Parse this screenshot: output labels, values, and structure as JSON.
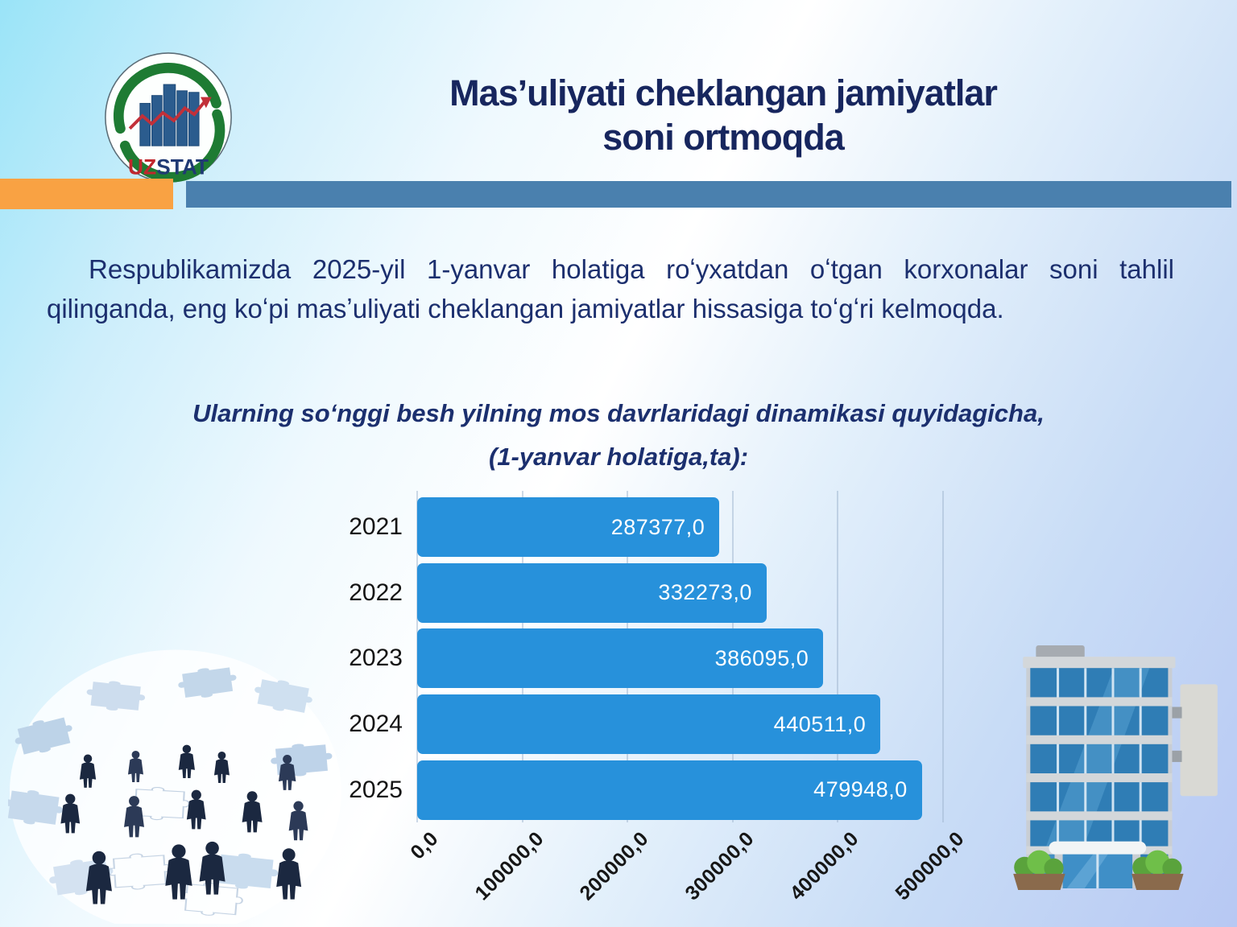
{
  "slide": {
    "title_line1": "Mas’uliyati cheklangan jamiyatlar",
    "title_line2": "soni ortmoqda",
    "paragraph": "Respublikamizda 2025-yil 1-yanvar holatiga roʻyxatdan oʻtgan korxonalar soni tahlil qilinganda, eng koʻpi masʼuliyati cheklangan jamiyatlar hissasiga toʻgʻri kelmoqda.",
    "subtitle_line1": "Ularning soʻnggi besh yilning mos davrlaridagi dinamikasi quyidagicha,",
    "subtitle_line2": "(1-yanvar holatiga,ta):"
  },
  "logo": {
    "text_uz": "UZ",
    "text_stat": "STAT"
  },
  "colors": {
    "title_navy": "#17265E",
    "text_navy": "#1C2F6E",
    "bar_blue": "#2791DB",
    "divider_orange": "#F9A243",
    "divider_steel_blue": "#4A80AE",
    "logo_green": "#1E7B33",
    "logo_red": "#C0272D",
    "value_label_white": "#FFFFFF"
  },
  "chart_data": {
    "type": "bar",
    "orientation": "horizontal",
    "title": "",
    "xlabel": "",
    "ylabel": "",
    "categories": [
      "2021",
      "2022",
      "2023",
      "2024",
      "2025"
    ],
    "values": [
      287377,
      332273,
      386095,
      440511,
      479948
    ],
    "value_labels": [
      "287377,0",
      "332273,0",
      "386095,0",
      "440511,0",
      "479948,0"
    ],
    "x_ticks": [
      0,
      100000,
      200000,
      300000,
      400000,
      500000
    ],
    "x_tick_labels": [
      "0,0",
      "100000,0",
      "200000,0",
      "300000,0",
      "400000,0",
      "500000,0"
    ],
    "xlim": [
      0,
      500000
    ],
    "grid": true,
    "legend": false,
    "bar_color": "#2791DB",
    "value_label_color": "#FFFFFF"
  }
}
